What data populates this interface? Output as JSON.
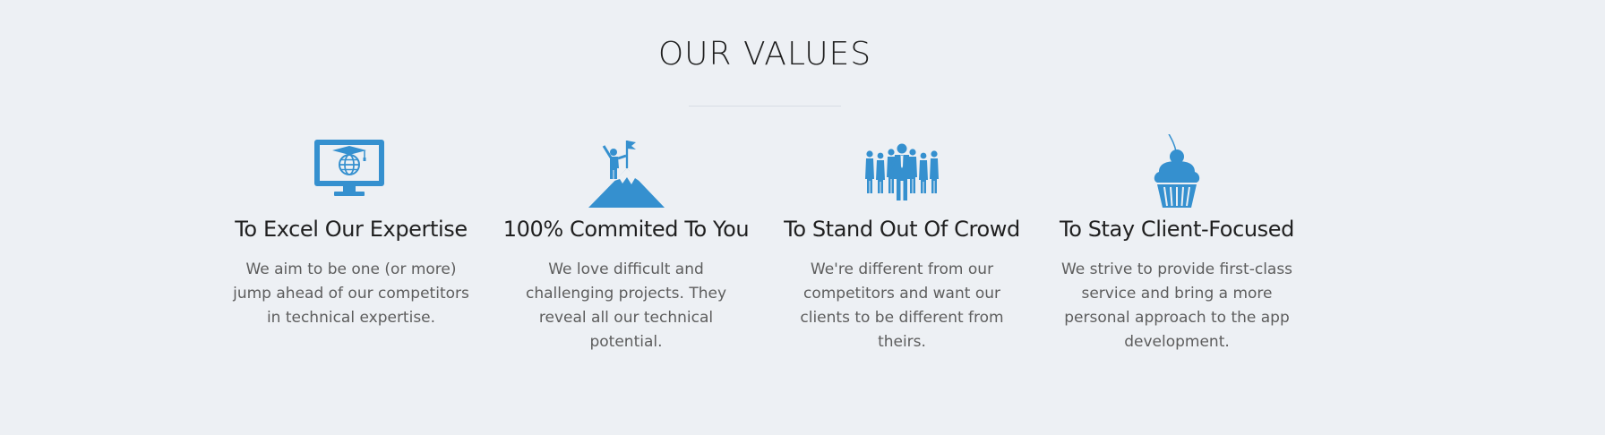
{
  "section": {
    "title": "OUR VALUES"
  },
  "values": [
    {
      "icon": "monitor-graduation-globe-icon",
      "title": "To Excel Our Expertise",
      "text": "We aim to be one (or more) jump ahead of our competitors in technical expertise."
    },
    {
      "icon": "mountain-flag-climber-icon",
      "title": "100% Commited To You",
      "text": "We love difficult and challenging projects. They reveal all our technical potential."
    },
    {
      "icon": "crowd-standing-out-icon",
      "title": "To Stand Out Of Crowd",
      "text": "We're different from our competitors and want our clients to be different from theirs."
    },
    {
      "icon": "cupcake-cherry-icon",
      "title": "To Stay Client-Focused",
      "text": "We strive to provide first-class service and bring a more personal approach to the app development."
    }
  ],
  "colors": {
    "background": "#edf0f4",
    "accent": "#3590cf",
    "title_text": "#1f1f1f",
    "body_text": "#5d5d5d"
  }
}
